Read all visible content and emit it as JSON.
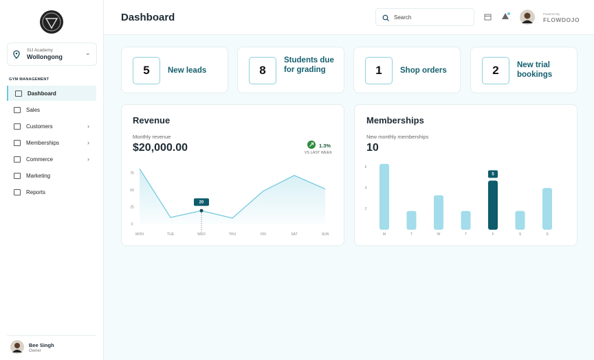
{
  "sidebar": {
    "academy_label": "SIJ Academy",
    "academy_name": "Wollongong",
    "section": "GYM MANAGEMENT",
    "nav": [
      "Dashboard",
      "Sales",
      "Customers",
      "Memberships",
      "Commerce",
      "Marketing",
      "Reports"
    ],
    "user": {
      "name": "Bee Singh",
      "role": "Owner"
    }
  },
  "header": {
    "title": "Dashboard",
    "search_placeholder": "Search",
    "powered_by": "Powered By",
    "brand": "FLOWDOJO"
  },
  "stats": [
    {
      "value": 5,
      "label": "New leads"
    },
    {
      "value": 8,
      "label": "Students due for grading"
    },
    {
      "value": 1,
      "label": "Shop orders"
    },
    {
      "value": 2,
      "label": "New trial bookings"
    }
  ],
  "chart_data": [
    {
      "type": "line",
      "title": "Revenue",
      "subtitle": "Monthly revenue",
      "total": "$20,000.00",
      "change": "1.3%",
      "change_note": "VS LAST WEEK",
      "categories": [
        "MON",
        "TUE",
        "WED",
        "THU",
        "FRI",
        "SAT",
        "SUN"
      ],
      "values": [
        82,
        10,
        20,
        9,
        49,
        72,
        52
      ],
      "value_labels": [
        null,
        null,
        "20",
        null,
        null,
        null,
        null
      ],
      "color": "#6cc7dc",
      "ylim": [
        0,
        85
      ],
      "yticks": [
        0,
        25,
        50,
        75
      ]
    },
    {
      "type": "bar",
      "title": "Memberships",
      "subtitle": "New monthly memberships",
      "total": "10",
      "categories": [
        "M",
        "T",
        "W",
        "T",
        "F",
        "S",
        "S"
      ],
      "values": [
        6.3,
        1.8,
        3.3,
        1.8,
        4.7,
        1.8,
        4
      ],
      "value_labels": [
        null,
        null,
        null,
        null,
        "5",
        null,
        null
      ],
      "color": "#a3dcea",
      "highlight_color": "#0d5b6b",
      "ylim": [
        0,
        6.5
      ],
      "yticks": [
        2,
        4,
        6
      ]
    }
  ]
}
